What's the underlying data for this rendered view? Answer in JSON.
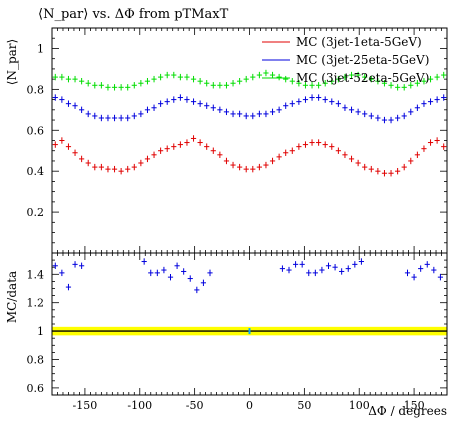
{
  "chart_data": {
    "type": "scatter",
    "title": "⟨N_par⟩ vs. ΔΦ from pTMaxT",
    "ylabel_main": "⟨N_par⟩",
    "ylabel_ratio": "MC/data",
    "xlabel": "ΔΦ / degrees",
    "xlim": [
      -180,
      180
    ],
    "ylim_main": [
      0,
      1.1
    ],
    "ylim_ratio": [
      0.55,
      1.55
    ],
    "x_ticks": [
      -150,
      -100,
      -50,
      0,
      50,
      100,
      150
    ],
    "y_ticks_main": [
      0.2,
      0.4,
      0.6,
      0.8,
      1
    ],
    "y_ticks_ratio": [
      0.6,
      0.8,
      1,
      1.2,
      1.4
    ],
    "legend_position": "top-right",
    "x": [
      -177,
      -171,
      -165,
      -159,
      -153,
      -147,
      -141,
      -135,
      -129,
      -123,
      -117,
      -111,
      -105,
      -99,
      -93,
      -87,
      -81,
      -75,
      -69,
      -63,
      -57,
      -51,
      -45,
      -39,
      -33,
      -27,
      -21,
      -15,
      -9,
      -3,
      3,
      9,
      15,
      21,
      27,
      33,
      39,
      45,
      51,
      57,
      63,
      69,
      75,
      81,
      87,
      93,
      99,
      105,
      111,
      117,
      123,
      129,
      135,
      141,
      147,
      153,
      159,
      165,
      171,
      177
    ],
    "series": [
      {
        "name": "MC (3jet-1eta-5GeV)",
        "color": "#e00000",
        "values": [
          0.53,
          0.55,
          0.52,
          0.49,
          0.46,
          0.44,
          0.42,
          0.42,
          0.41,
          0.41,
          0.4,
          0.41,
          0.42,
          0.44,
          0.46,
          0.48,
          0.5,
          0.51,
          0.52,
          0.53,
          0.54,
          0.56,
          0.54,
          0.52,
          0.5,
          0.48,
          0.45,
          0.43,
          0.42,
          0.41,
          0.41,
          0.42,
          0.43,
          0.45,
          0.47,
          0.49,
          0.5,
          0.52,
          0.53,
          0.54,
          0.54,
          0.53,
          0.52,
          0.5,
          0.48,
          0.46,
          0.44,
          0.42,
          0.41,
          0.4,
          0.39,
          0.39,
          0.4,
          0.42,
          0.45,
          0.48,
          0.51,
          0.54,
          0.55,
          0.52
        ]
      },
      {
        "name": "MC (3jet-25eta-5GeV)",
        "color": "#0000dd",
        "values": [
          0.76,
          0.75,
          0.73,
          0.72,
          0.7,
          0.68,
          0.67,
          0.66,
          0.66,
          0.66,
          0.66,
          0.66,
          0.67,
          0.68,
          0.7,
          0.71,
          0.73,
          0.74,
          0.75,
          0.76,
          0.75,
          0.74,
          0.73,
          0.72,
          0.71,
          0.7,
          0.69,
          0.68,
          0.68,
          0.67,
          0.67,
          0.68,
          0.68,
          0.69,
          0.7,
          0.72,
          0.73,
          0.74,
          0.75,
          0.76,
          0.76,
          0.75,
          0.74,
          0.73,
          0.71,
          0.7,
          0.69,
          0.68,
          0.67,
          0.66,
          0.65,
          0.65,
          0.66,
          0.67,
          0.69,
          0.71,
          0.73,
          0.74,
          0.75,
          0.76
        ]
      },
      {
        "name": "MC (3jet-52eta-5GeV)",
        "color": "#00dd00",
        "values": [
          0.86,
          0.86,
          0.85,
          0.85,
          0.84,
          0.83,
          0.82,
          0.82,
          0.81,
          0.81,
          0.81,
          0.81,
          0.82,
          0.83,
          0.84,
          0.85,
          0.86,
          0.87,
          0.87,
          0.86,
          0.86,
          0.85,
          0.84,
          0.83,
          0.82,
          0.82,
          0.82,
          0.83,
          0.84,
          0.85,
          0.86,
          0.87,
          0.88,
          0.87,
          0.86,
          0.85,
          0.84,
          0.83,
          0.82,
          0.82,
          0.82,
          0.83,
          0.84,
          0.85,
          0.86,
          0.87,
          0.87,
          0.86,
          0.85,
          0.84,
          0.83,
          0.82,
          0.81,
          0.81,
          0.82,
          0.83,
          0.84,
          0.85,
          0.86,
          0.87
        ]
      }
    ],
    "ratio_series": [
      {
        "name": "MC (3jet-25eta-5GeV)",
        "color": "#0000dd",
        "x": [
          -177,
          -171,
          -165,
          -159,
          -153,
          -96,
          -90,
          -84,
          -78,
          -72,
          -66,
          -60,
          -54,
          -48,
          -42,
          -36,
          30,
          36,
          42,
          48,
          54,
          60,
          66,
          72,
          78,
          84,
          90,
          96,
          102,
          144,
          150,
          156,
          162,
          168,
          174
        ],
        "values": [
          1.46,
          1.41,
          1.31,
          1.47,
          1.46,
          1.49,
          1.41,
          1.41,
          1.43,
          1.38,
          1.46,
          1.42,
          1.37,
          1.29,
          1.34,
          1.41,
          1.44,
          1.43,
          1.47,
          1.47,
          1.41,
          1.41,
          1.43,
          1.46,
          1.45,
          1.42,
          1.44,
          1.47,
          1.49,
          1.41,
          1.38,
          1.44,
          1.47,
          1.43,
          1.38
        ]
      }
    ],
    "data_band": {
      "center": 1.0,
      "half_width": 0.03,
      "color": "#ffff00"
    },
    "ratio_data_point": {
      "x": 0,
      "value": 1.0,
      "color": "#00aaff"
    }
  }
}
